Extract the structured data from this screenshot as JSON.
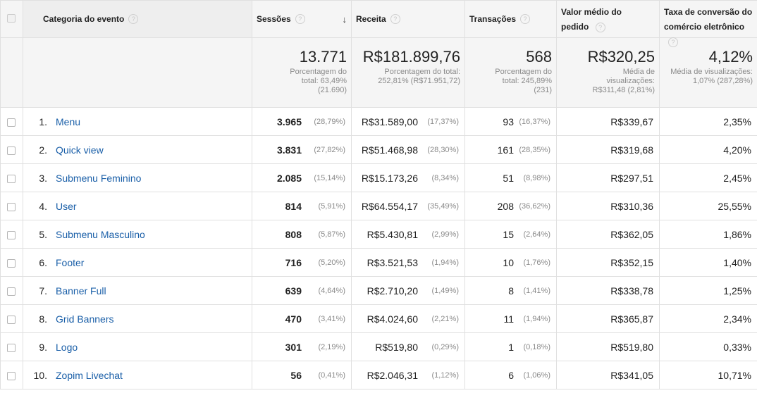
{
  "headers": {
    "category": "Categoria do evento",
    "sessions": "Sessões",
    "revenue": "Receita",
    "transactions": "Transações",
    "avg_order_line1": "Valor médio do",
    "avg_order_line2": "pedido",
    "conv_line1": "Taxa de conversão do",
    "conv_line2": "comércio eletrônico",
    "help_glyph": "?",
    "sort_glyph": "↓"
  },
  "totals": {
    "sessions": {
      "value": "13.771",
      "sub": [
        "Porcentagem do",
        "total: 63,49%",
        "(21.690)"
      ]
    },
    "revenue": {
      "value": "R$181.899,76",
      "sub": [
        "Porcentagem do total:",
        "252,81% (R$71.951,72)"
      ]
    },
    "transactions": {
      "value": "568",
      "sub": [
        "Porcentagem do",
        "total: 245,89%",
        "(231)"
      ]
    },
    "avg_order": {
      "value": "R$320,25",
      "sub": [
        "Média de",
        "visualizações:",
        "R$311,48 (2,81%)"
      ]
    },
    "conv_rate": {
      "value": "4,12%",
      "sub": [
        "Média de visualizações:",
        "1,07% (287,28%)"
      ]
    }
  },
  "rows": [
    {
      "idx": "1.",
      "name": "Menu",
      "sessions": "3.965",
      "sessions_pct": "(28,79%)",
      "revenue": "R$31.589,00",
      "revenue_pct": "(17,37%)",
      "trans": "93",
      "trans_pct": "(16,37%)",
      "avg": "R$339,67",
      "conv": "2,35%"
    },
    {
      "idx": "2.",
      "name": "Quick view",
      "sessions": "3.831",
      "sessions_pct": "(27,82%)",
      "revenue": "R$51.468,98",
      "revenue_pct": "(28,30%)",
      "trans": "161",
      "trans_pct": "(28,35%)",
      "avg": "R$319,68",
      "conv": "4,20%"
    },
    {
      "idx": "3.",
      "name": "Submenu Feminino",
      "sessions": "2.085",
      "sessions_pct": "(15,14%)",
      "revenue": "R$15.173,26",
      "revenue_pct": "(8,34%)",
      "trans": "51",
      "trans_pct": "(8,98%)",
      "avg": "R$297,51",
      "conv": "2,45%"
    },
    {
      "idx": "4.",
      "name": "User",
      "sessions": "814",
      "sessions_pct": "(5,91%)",
      "revenue": "R$64.554,17",
      "revenue_pct": "(35,49%)",
      "trans": "208",
      "trans_pct": "(36,62%)",
      "avg": "R$310,36",
      "conv": "25,55%"
    },
    {
      "idx": "5.",
      "name": "Submenu Masculino",
      "sessions": "808",
      "sessions_pct": "(5,87%)",
      "revenue": "R$5.430,81",
      "revenue_pct": "(2,99%)",
      "trans": "15",
      "trans_pct": "(2,64%)",
      "avg": "R$362,05",
      "conv": "1,86%"
    },
    {
      "idx": "6.",
      "name": "Footer",
      "sessions": "716",
      "sessions_pct": "(5,20%)",
      "revenue": "R$3.521,53",
      "revenue_pct": "(1,94%)",
      "trans": "10",
      "trans_pct": "(1,76%)",
      "avg": "R$352,15",
      "conv": "1,40%"
    },
    {
      "idx": "7.",
      "name": "Banner Full",
      "sessions": "639",
      "sessions_pct": "(4,64%)",
      "revenue": "R$2.710,20",
      "revenue_pct": "(1,49%)",
      "trans": "8",
      "trans_pct": "(1,41%)",
      "avg": "R$338,78",
      "conv": "1,25%"
    },
    {
      "idx": "8.",
      "name": "Grid Banners",
      "sessions": "470",
      "sessions_pct": "(3,41%)",
      "revenue": "R$4.024,60",
      "revenue_pct": "(2,21%)",
      "trans": "11",
      "trans_pct": "(1,94%)",
      "avg": "R$365,87",
      "conv": "2,34%"
    },
    {
      "idx": "9.",
      "name": "Logo",
      "sessions": "301",
      "sessions_pct": "(2,19%)",
      "revenue": "R$519,80",
      "revenue_pct": "(0,29%)",
      "trans": "1",
      "trans_pct": "(0,18%)",
      "avg": "R$519,80",
      "conv": "0,33%"
    },
    {
      "idx": "10.",
      "name": "Zopim Livechat",
      "sessions": "56",
      "sessions_pct": "(0,41%)",
      "revenue": "R$2.046,31",
      "revenue_pct": "(1,12%)",
      "trans": "6",
      "trans_pct": "(1,06%)",
      "avg": "R$341,05",
      "conv": "10,71%"
    }
  ]
}
